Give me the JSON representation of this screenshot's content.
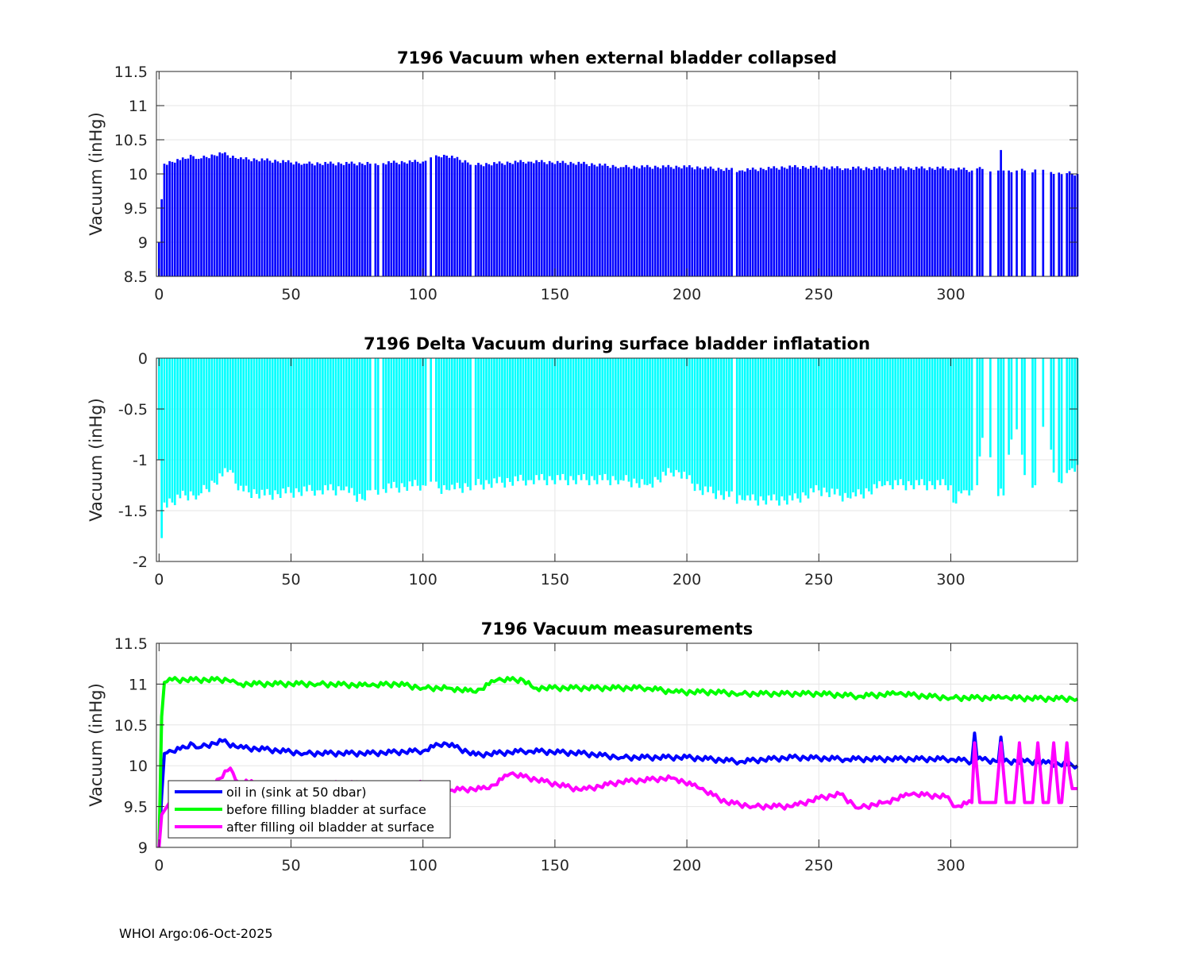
{
  "footer": "WHOI Argo:06-Oct-2025",
  "chart_data": [
    {
      "type": "bar",
      "title": "7196 Vacuum when external bladder collapsed",
      "xlabel": "",
      "ylabel": "Vacuum (inHg)",
      "xlim": [
        -1,
        348
      ],
      "ylim": [
        8.5,
        11.5
      ],
      "xticks": [
        0,
        50,
        100,
        150,
        200,
        250,
        300
      ],
      "yticks": [
        8.5,
        9,
        9.5,
        10,
        10.5,
        11,
        11.5
      ],
      "grid": true,
      "color": "#0000ff",
      "knots": [
        [
          0,
          9.0
        ],
        [
          1,
          9.63
        ],
        [
          2,
          10.15
        ],
        [
          10,
          10.22
        ],
        [
          12,
          10.28
        ],
        [
          15,
          10.22
        ],
        [
          24,
          10.3
        ],
        [
          30,
          10.22
        ],
        [
          40,
          10.2
        ],
        [
          55,
          10.15
        ],
        [
          80,
          10.15
        ],
        [
          100,
          10.18
        ],
        [
          108,
          10.28
        ],
        [
          120,
          10.13
        ],
        [
          140,
          10.18
        ],
        [
          160,
          10.15
        ],
        [
          175,
          10.1
        ],
        [
          200,
          10.1
        ],
        [
          220,
          10.05
        ],
        [
          240,
          10.1
        ],
        [
          260,
          10.08
        ],
        [
          280,
          10.08
        ],
        [
          300,
          10.08
        ],
        [
          308,
          10.05
        ],
        [
          309,
          10.4
        ],
        [
          310,
          10.08
        ],
        [
          318,
          10.05
        ],
        [
          319,
          10.35
        ],
        [
          320,
          10.05
        ],
        [
          330,
          10.05
        ],
        [
          348,
          10.0
        ]
      ],
      "gaps": [
        81,
        84,
        102,
        104,
        119,
        218,
        309,
        313,
        314,
        316,
        317,
        321,
        324,
        326,
        329,
        330,
        333,
        334,
        336,
        337,
        340,
        343
      ]
    },
    {
      "type": "bar",
      "title": "7196 Delta Vacuum during surface bladder inflatation",
      "xlabel": "",
      "ylabel": "Vacuum (inHg)",
      "xlim": [
        -1,
        348
      ],
      "ylim": [
        -2,
        0
      ],
      "xticks": [
        0,
        50,
        100,
        150,
        200,
        250,
        300
      ],
      "yticks": [
        -2,
        -1.5,
        -1,
        -0.5,
        0
      ],
      "grid": true,
      "color": "#00ffff",
      "knots": [
        [
          0,
          -1.0
        ],
        [
          1,
          -1.77
        ],
        [
          2,
          -1.42
        ],
        [
          5,
          -1.42
        ],
        [
          10,
          -1.35
        ],
        [
          15,
          -1.35
        ],
        [
          27,
          -1.1
        ],
        [
          30,
          -1.3
        ],
        [
          40,
          -1.35
        ],
        [
          60,
          -1.3
        ],
        [
          70,
          -1.3
        ],
        [
          78,
          -1.4
        ],
        [
          80,
          -1.3
        ],
        [
          100,
          -1.25
        ],
        [
          110,
          -1.3
        ],
        [
          120,
          -1.25
        ],
        [
          140,
          -1.2
        ],
        [
          160,
          -1.2
        ],
        [
          175,
          -1.2
        ],
        [
          185,
          -1.25
        ],
        [
          196,
          -1.1
        ],
        [
          205,
          -1.3
        ],
        [
          222,
          -1.4
        ],
        [
          240,
          -1.4
        ],
        [
          250,
          -1.3
        ],
        [
          262,
          -1.38
        ],
        [
          275,
          -1.25
        ],
        [
          300,
          -1.25
        ],
        [
          301,
          -1.42
        ],
        [
          305,
          -1.3
        ],
        [
          308,
          -1.3
        ],
        [
          310,
          -1.25
        ],
        [
          313,
          -0.55
        ],
        [
          317,
          -1.3
        ],
        [
          320,
          -1.35
        ],
        [
          324,
          -0.55
        ],
        [
          328,
          -1.15
        ],
        [
          332,
          -1.25
        ],
        [
          336,
          -0.55
        ],
        [
          340,
          -1.25
        ],
        [
          345,
          -1.1
        ],
        [
          348,
          -1.05
        ]
      ],
      "gaps": [
        81,
        84,
        102,
        104,
        119,
        218,
        309,
        313,
        314,
        316,
        317,
        321,
        324,
        326,
        329,
        330,
        333,
        334,
        336,
        337,
        340,
        343
      ]
    },
    {
      "type": "line",
      "title": "7196 Vacuum measurements",
      "xlabel": "",
      "ylabel": "Vacuum (inHg)",
      "xlim": [
        -1,
        348
      ],
      "ylim": [
        9,
        11.5
      ],
      "xticks": [
        0,
        50,
        100,
        150,
        200,
        250,
        300
      ],
      "yticks": [
        9,
        9.5,
        10,
        10.5,
        11,
        11.5
      ],
      "grid": true,
      "legend": "bottom-left",
      "series": [
        {
          "name": "oil in (sink at 50 dbar)",
          "color": "#0000ff",
          "knots": [
            [
              0,
              9.0
            ],
            [
              1,
              9.63
            ],
            [
              2,
              10.15
            ],
            [
              10,
              10.22
            ],
            [
              12,
              10.28
            ],
            [
              15,
              10.22
            ],
            [
              24,
              10.3
            ],
            [
              30,
              10.22
            ],
            [
              40,
              10.2
            ],
            [
              55,
              10.15
            ],
            [
              80,
              10.15
            ],
            [
              100,
              10.18
            ],
            [
              108,
              10.28
            ],
            [
              120,
              10.13
            ],
            [
              140,
              10.18
            ],
            [
              160,
              10.15
            ],
            [
              175,
              10.1
            ],
            [
              200,
              10.1
            ],
            [
              220,
              10.05
            ],
            [
              240,
              10.1
            ],
            [
              260,
              10.08
            ],
            [
              280,
              10.08
            ],
            [
              300,
              10.08
            ],
            [
              308,
              10.05
            ],
            [
              309,
              10.4
            ],
            [
              310,
              10.08
            ],
            [
              318,
              10.05
            ],
            [
              319,
              10.35
            ],
            [
              320,
              10.05
            ],
            [
              330,
              10.05
            ],
            [
              348,
              10.0
            ]
          ]
        },
        {
          "name": "before filling bladder at surface",
          "color": "#00ff00",
          "knots": [
            [
              0,
              9.0
            ],
            [
              1,
              10.6
            ],
            [
              2,
              11.02
            ],
            [
              5,
              11.05
            ],
            [
              15,
              11.05
            ],
            [
              28,
              11.05
            ],
            [
              30,
              11.0
            ],
            [
              60,
              11.0
            ],
            [
              80,
              10.98
            ],
            [
              90,
              11.0
            ],
            [
              100,
              10.95
            ],
            [
              110,
              10.95
            ],
            [
              120,
              10.9
            ],
            [
              128,
              11.05
            ],
            [
              138,
              11.05
            ],
            [
              142,
              10.95
            ],
            [
              170,
              10.95
            ],
            [
              185,
              10.95
            ],
            [
              195,
              10.9
            ],
            [
              210,
              10.9
            ],
            [
              220,
              10.88
            ],
            [
              250,
              10.88
            ],
            [
              265,
              10.85
            ],
            [
              280,
              10.88
            ],
            [
              290,
              10.85
            ],
            [
              300,
              10.83
            ],
            [
              320,
              10.83
            ],
            [
              335,
              10.82
            ],
            [
              348,
              10.82
            ]
          ]
        },
        {
          "name": "after filling oil bladder at surface",
          "color": "#ff00ff",
          "knots": [
            [
              0,
              9.0
            ],
            [
              1,
              9.4
            ],
            [
              3,
              9.5
            ],
            [
              6,
              9.65
            ],
            [
              20,
              9.75
            ],
            [
              27,
              9.97
            ],
            [
              30,
              9.8
            ],
            [
              50,
              9.75
            ],
            [
              70,
              9.78
            ],
            [
              90,
              9.75
            ],
            [
              100,
              9.78
            ],
            [
              110,
              9.7
            ],
            [
              125,
              9.72
            ],
            [
              133,
              9.9
            ],
            [
              140,
              9.85
            ],
            [
              160,
              9.7
            ],
            [
              175,
              9.8
            ],
            [
              195,
              9.85
            ],
            [
              205,
              9.72
            ],
            [
              215,
              9.55
            ],
            [
              225,
              9.5
            ],
            [
              240,
              9.5
            ],
            [
              250,
              9.6
            ],
            [
              258,
              9.65
            ],
            [
              265,
              9.48
            ],
            [
              275,
              9.55
            ],
            [
              285,
              9.65
            ],
            [
              298,
              9.62
            ],
            [
              302,
              9.5
            ],
            [
              308,
              9.55
            ]
          ],
          "spikes": [
            [
              309,
              10.28
            ],
            [
              319,
              10.28
            ],
            [
              326,
              10.28
            ],
            [
              333,
              10.28
            ],
            [
              339,
              10.28
            ],
            [
              344,
              10.28
            ]
          ],
          "tail": 9.55,
          "tail_end": 9.72
        }
      ]
    }
  ]
}
